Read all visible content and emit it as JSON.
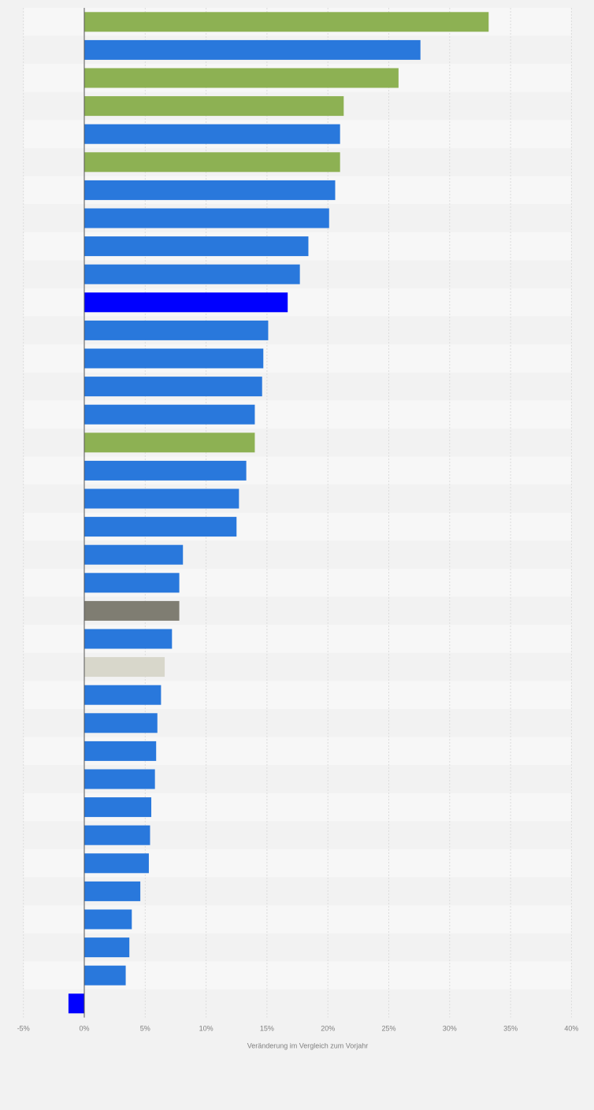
{
  "colors": {
    "page_background": "#f2f2f2",
    "band_light": "#f7f7f7",
    "band_dark": "#f2f2f2",
    "gridline": "#dcdcdc",
    "zero_axis": "#555555",
    "tick_label": "#808080"
  },
  "chart_data": {
    "type": "bar",
    "orientation": "horizontal",
    "title": "",
    "xlabel": "Veränderung im Vergleich zum Vorjahr",
    "ylabel": "",
    "xlim": [
      -5,
      40
    ],
    "x_ticks": [
      -5,
      0,
      5,
      10,
      15,
      20,
      25,
      30,
      35,
      40
    ],
    "x_tick_labels": [
      "-5%",
      "0%",
      "5%",
      "10%",
      "15%",
      "20%",
      "25%",
      "30%",
      "35%",
      "40%"
    ],
    "grid": true,
    "legend": "none",
    "values": [
      33.2,
      27.6,
      25.8,
      21.3,
      21.0,
      21.0,
      20.6,
      20.1,
      18.4,
      17.7,
      16.7,
      15.1,
      14.7,
      14.6,
      14.0,
      14.0,
      13.3,
      12.7,
      12.5,
      8.1,
      7.8,
      7.8,
      7.2,
      6.6,
      6.3,
      6.0,
      5.9,
      5.8,
      5.5,
      5.4,
      5.3,
      4.6,
      3.9,
      3.7,
      3.4,
      -1.3
    ],
    "bar_colors": [
      "#8db153",
      "#2978dc",
      "#8db153",
      "#8db153",
      "#2978dc",
      "#8db153",
      "#2978dc",
      "#2978dc",
      "#2978dc",
      "#2978dc",
      "#0000ff",
      "#2978dc",
      "#2978dc",
      "#2978dc",
      "#2978dc",
      "#8db153",
      "#2978dc",
      "#2978dc",
      "#2978dc",
      "#2978dc",
      "#2978dc",
      "#7f7d72",
      "#2978dc",
      "#d8d7cb",
      "#2978dc",
      "#2978dc",
      "#2978dc",
      "#2978dc",
      "#2978dc",
      "#2978dc",
      "#2978dc",
      "#2978dc",
      "#2978dc",
      "#2978dc",
      "#2978dc",
      "#0000ff"
    ]
  }
}
